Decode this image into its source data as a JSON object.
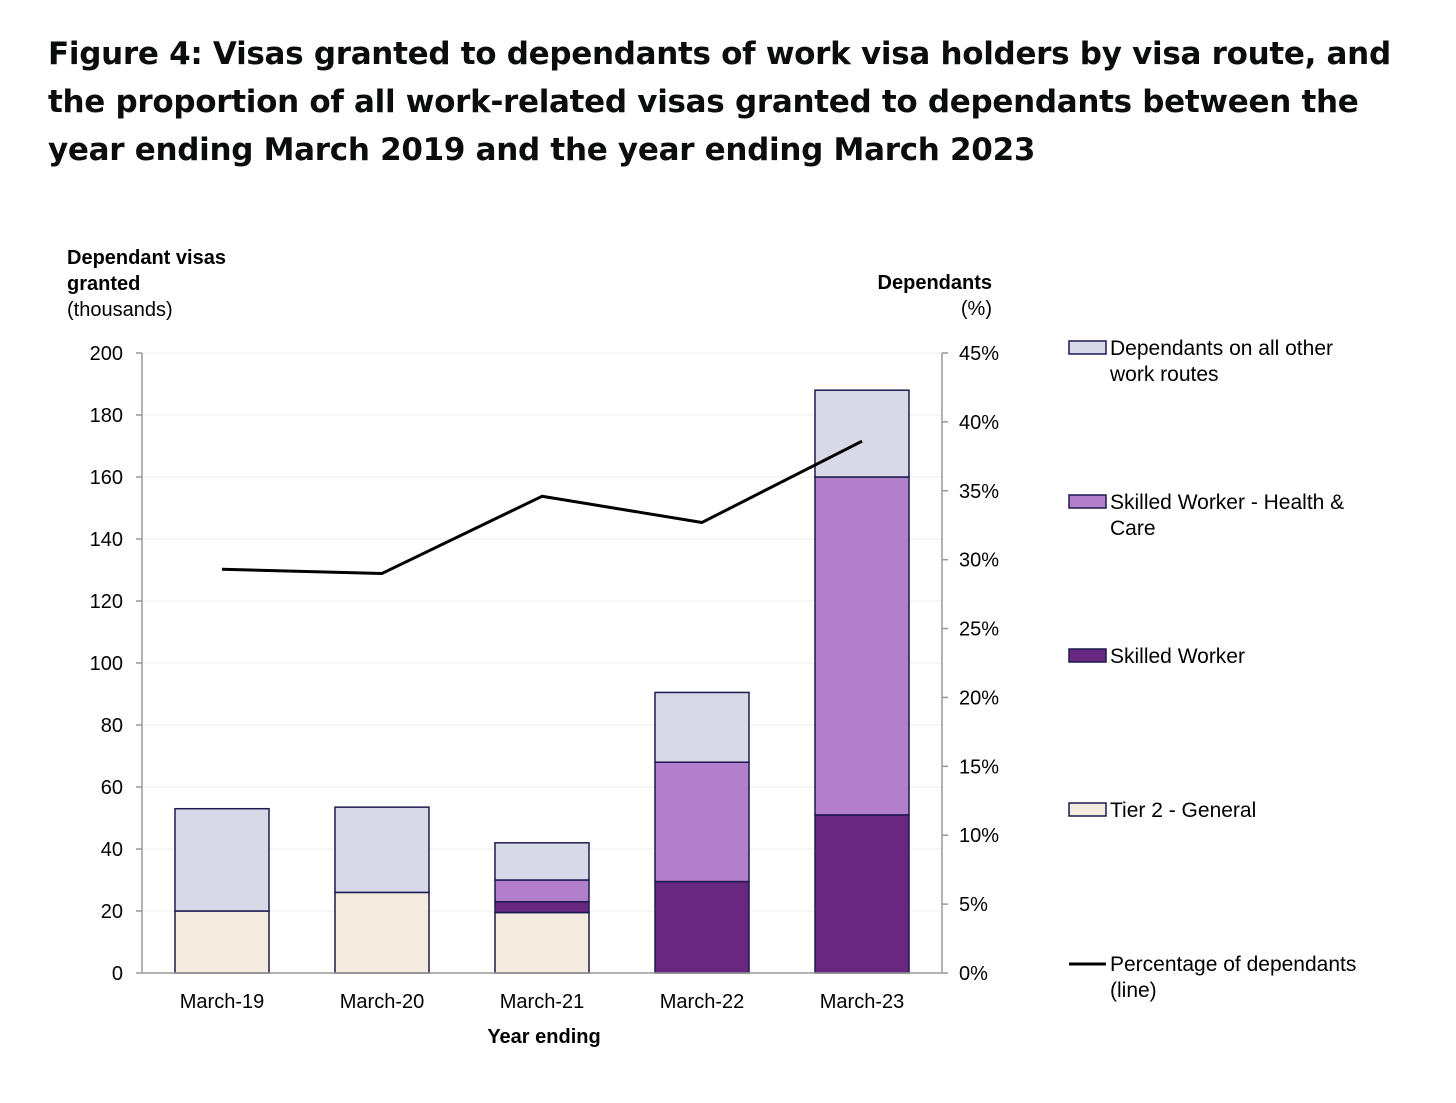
{
  "title": "Figure 4: Visas granted to dependants of work visa holders by visa route, and the proportion of all work-related visas granted to dependants between the year ending March 2019 and the year ending March 2023",
  "chart_data": {
    "type": "bar",
    "stacked": true,
    "xlabel": "Year ending",
    "ylabel_left": {
      "line1": "Dependant visas",
      "line2": "granted",
      "line3": "(thousands)"
    },
    "ylabel_right": {
      "line1": "Dependants",
      "line2": "(%)"
    },
    "categories": [
      "March-19",
      "March-20",
      "March-21",
      "March-22",
      "March-23"
    ],
    "ylim": [
      0,
      200
    ],
    "yticks": [
      "0",
      "20",
      "40",
      "60",
      "80",
      "100",
      "120",
      "140",
      "160",
      "180",
      "200"
    ],
    "y2lim": [
      0,
      45
    ],
    "y2ticks": [
      "0%",
      "5%",
      "10%",
      "15%",
      "20%",
      "25%",
      "30%",
      "35%",
      "40%",
      "45%"
    ],
    "series": [
      {
        "name": "Tier 2 - General",
        "color": "#f3ebdf",
        "values": [
          20,
          26,
          19.5,
          0,
          0
        ]
      },
      {
        "name": "Skilled Worker",
        "color": "#68287f",
        "values": [
          0,
          0,
          3.5,
          29.5,
          51
        ]
      },
      {
        "name": "Skilled Worker - Health & Care",
        "color": "#b27fcb",
        "values": [
          0,
          0,
          7,
          38.5,
          109
        ]
      },
      {
        "name": "Dependants on all other work routes",
        "color": "#d8d9e8",
        "values": [
          33,
          27.5,
          12,
          22.5,
          28
        ]
      }
    ],
    "line": {
      "name": "Percentage of dependants (line)",
      "color": "#000000",
      "axis": "right",
      "values": [
        29.3,
        29.0,
        34.6,
        32.7,
        38.6
      ]
    },
    "legend": [
      {
        "line1": "Dependants on all other",
        "line2": "work routes",
        "kind": "box",
        "color": "#d8d9e8"
      },
      {
        "line1": "Skilled Worker - Health &",
        "line2": "Care",
        "kind": "box",
        "color": "#b27fcb"
      },
      {
        "line1": "Skilled Worker",
        "line2": "",
        "kind": "box",
        "color": "#68287f"
      },
      {
        "line1": "Tier 2 - General",
        "line2": "",
        "kind": "box",
        "color": "#f3ebdf"
      },
      {
        "line1": "Percentage of dependants",
        "line2": "(line)",
        "kind": "line",
        "color": "#000000"
      }
    ],
    "legend_position": "right",
    "grid": true
  }
}
